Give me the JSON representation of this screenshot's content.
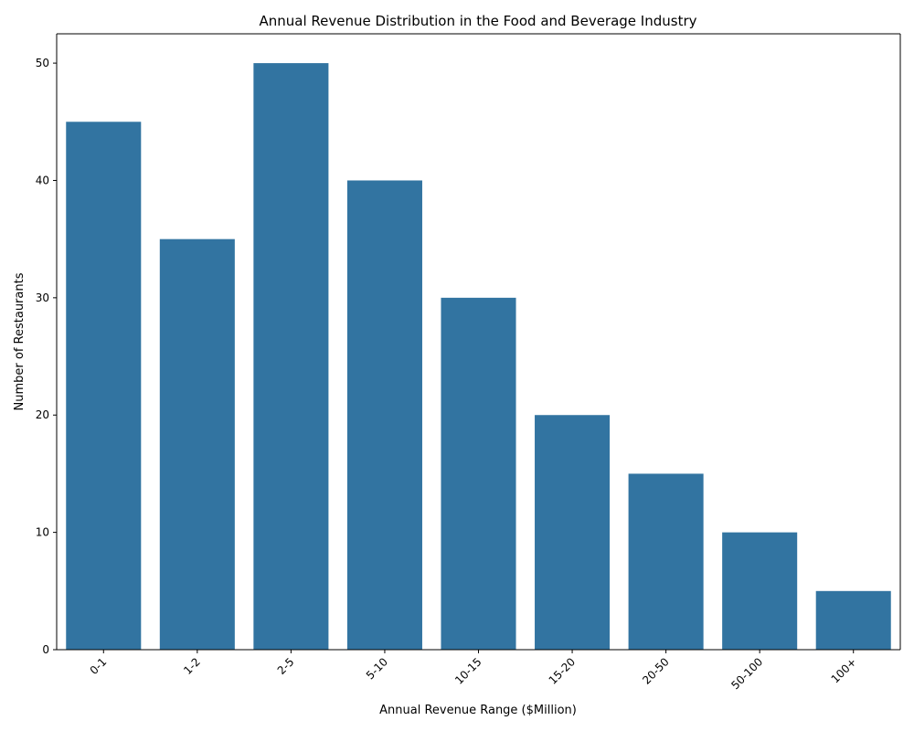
{
  "chart_data": {
    "type": "bar",
    "title": "Annual Revenue Distribution in the Food and Beverage Industry",
    "xlabel": "Annual Revenue Range ($Million)",
    "ylabel": "Number of Restaurants",
    "categories": [
      "0-1",
      "1-2",
      "2-5",
      "5-10",
      "10-15",
      "15-20",
      "20-50",
      "50-100",
      "100+"
    ],
    "values": [
      45,
      35,
      50,
      40,
      30,
      20,
      15,
      10,
      5
    ],
    "ylim": [
      0,
      52.5
    ],
    "yticks": [
      0,
      10,
      20,
      30,
      40,
      50
    ],
    "bar_color": "#3274a1",
    "grid": false,
    "legend": "none"
  }
}
